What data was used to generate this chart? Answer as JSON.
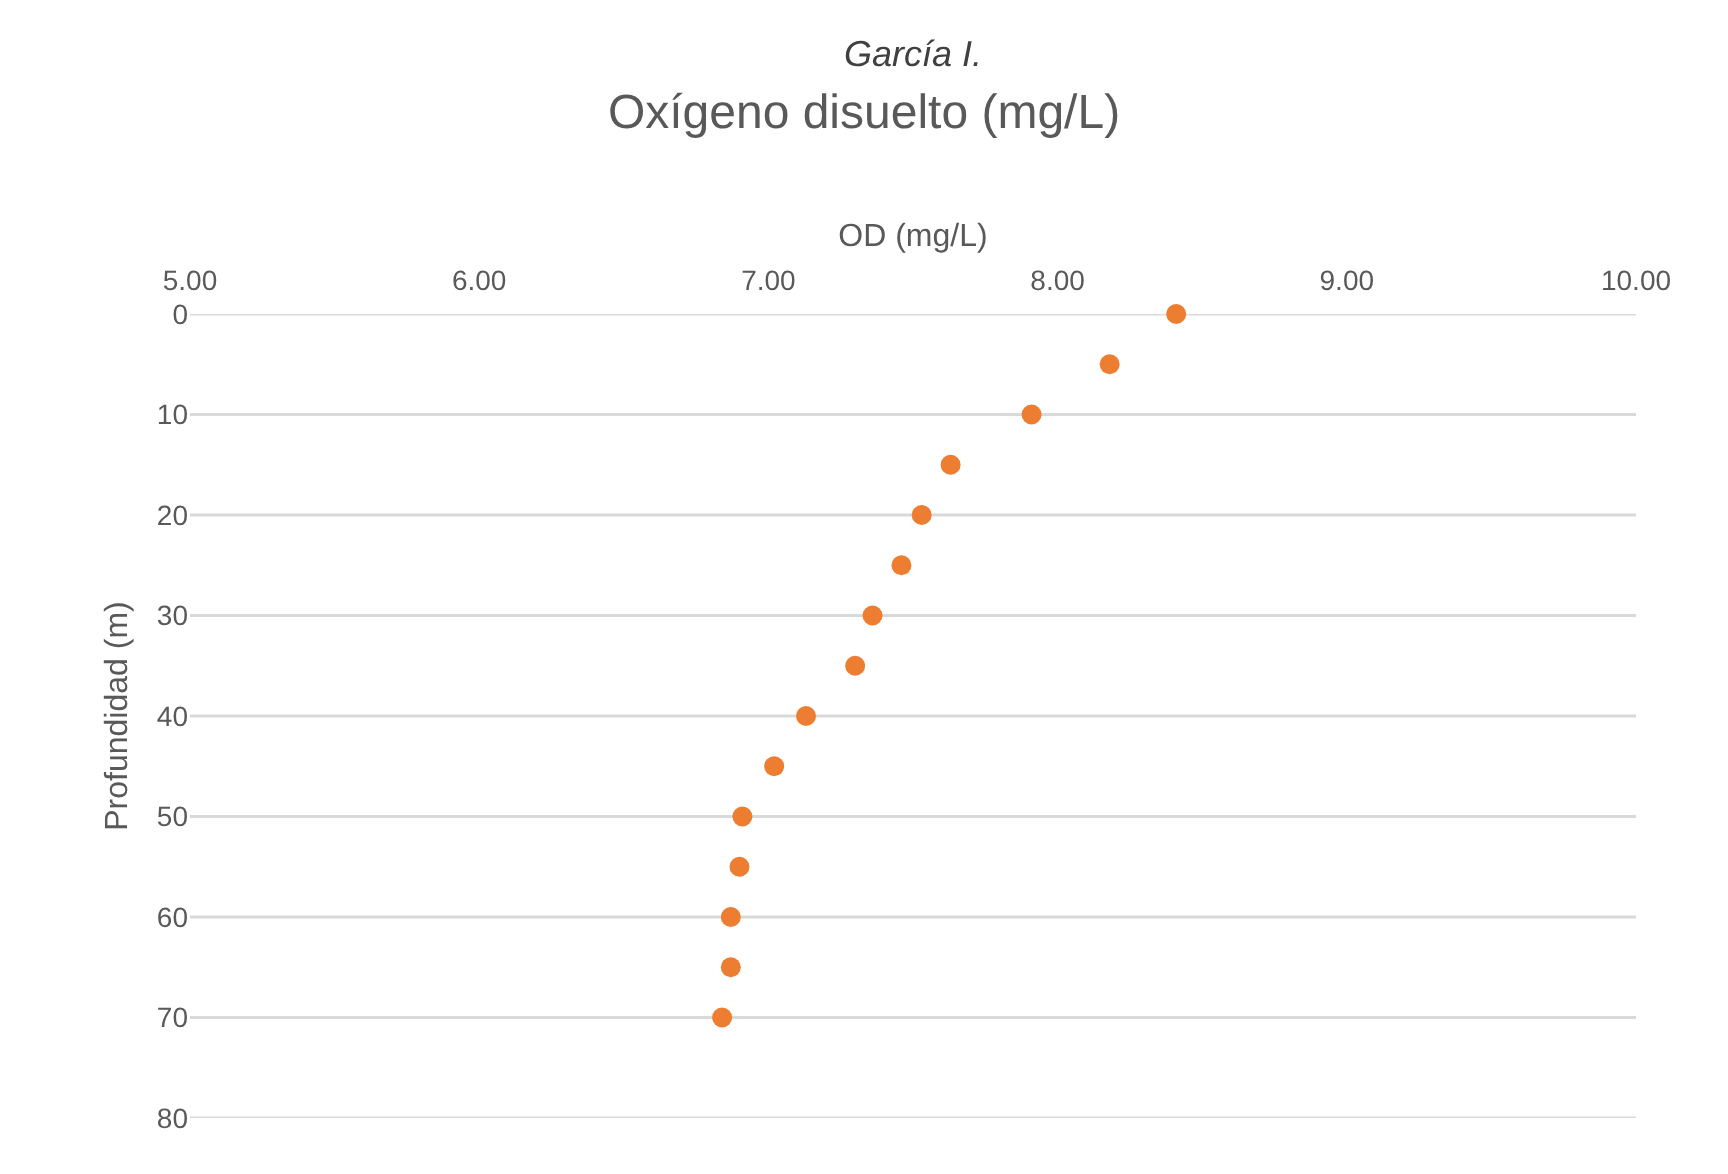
{
  "chart_data": {
    "type": "scatter",
    "title": "Oxígeno disuelto (mg/L)",
    "xlabel": "OD (mg/L)",
    "ylabel": "Profundidad (m)",
    "annotations": [
      "García I."
    ],
    "x": [
      8.41,
      8.18,
      7.91,
      7.63,
      7.53,
      7.46,
      7.36,
      7.3,
      7.13,
      7.02,
      6.91,
      6.9,
      6.87,
      6.87,
      6.84
    ],
    "series": [
      {
        "color": "#ed7d31",
        "values": [
          0,
          5,
          10,
          15,
          20,
          25,
          30,
          35,
          40,
          45,
          50,
          55,
          60,
          65,
          70
        ]
      }
    ],
    "xlim": [
      5,
      10
    ],
    "xticks": [
      {
        "value": 5,
        "label": "5.00"
      },
      {
        "value": 6,
        "label": "6.00"
      },
      {
        "value": 7,
        "label": "7.00"
      },
      {
        "value": 8,
        "label": "8.00"
      },
      {
        "value": 9,
        "label": "9.00"
      },
      {
        "value": 10,
        "label": "10.00"
      }
    ],
    "ylim": [
      80,
      0
    ],
    "yticks": [
      0,
      10,
      20,
      30,
      40,
      50,
      60,
      70,
      80
    ],
    "grid": "y",
    "marker": "circle"
  }
}
